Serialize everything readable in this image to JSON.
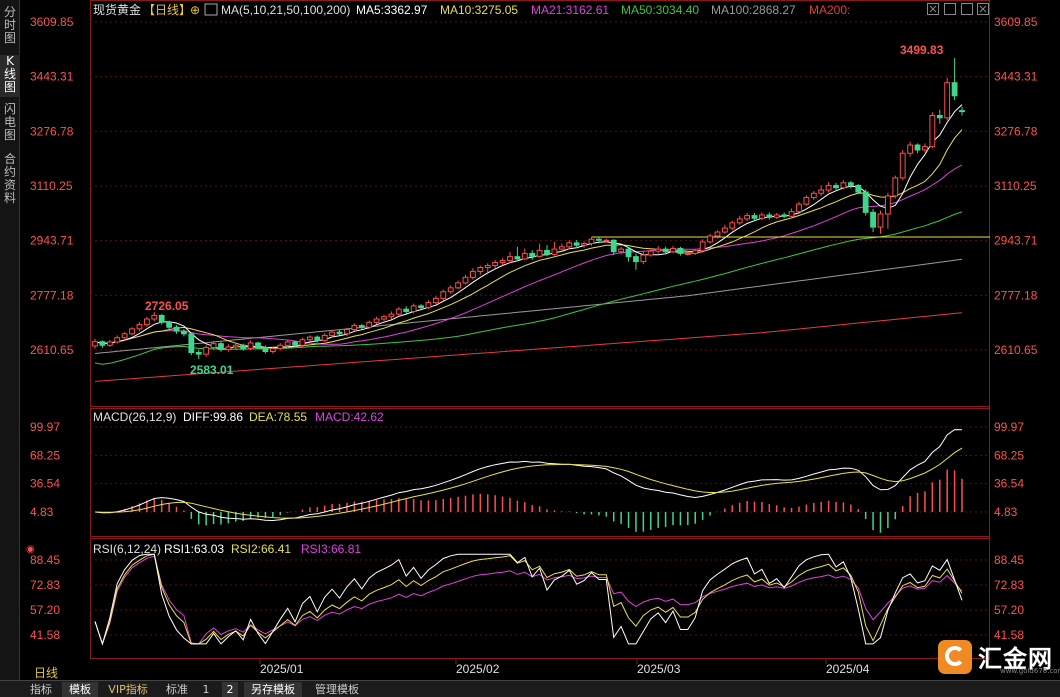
{
  "sidebar": {
    "tabs": [
      {
        "label": "分时图",
        "active": false
      },
      {
        "label": "K线图",
        "active": true
      },
      {
        "label": "闪电图",
        "active": false
      },
      {
        "label": "合约资料",
        "active": false
      }
    ]
  },
  "header": {
    "symbol": "现货黄金",
    "period_tag": "【日线】",
    "ma_params": "MA(5,10,21,50,100,200)",
    "ma5": "MA5:3362.97",
    "ma10": "MA10:3275.05",
    "ma21": "MA21:3162.61",
    "ma50": "MA50:3034.40",
    "ma100": "MA100:2868.27",
    "ma200": "MA200:"
  },
  "colors": {
    "up": "#ff4d4d",
    "down": "#3dd68c",
    "ma5": "#ffffff",
    "ma10": "#e8e04a",
    "ma21": "#e040e0",
    "ma50": "#3ec63e",
    "ma100": "#9a9a9a",
    "ma200": "#e83a3a",
    "axis_text": "#ff5050",
    "grid": "#5a1010"
  },
  "price_axis": [
    "3609.85",
    "3443.31",
    "3276.78",
    "3110.25",
    "2943.71",
    "2777.18",
    "2610.65"
  ],
  "annotations": {
    "high": "3499.83",
    "left_high": "2726.05",
    "low": "2583.01"
  },
  "macd": {
    "title": "MACD(26,12,9)",
    "diff": "DIFF:99.86",
    "dea": "DEA:78.55",
    "macd": "MACD:42.62",
    "axis": [
      "99.97",
      "68.25",
      "36.54",
      "4.83"
    ]
  },
  "rsi": {
    "title": "RSI(6,12,24)",
    "rsi1": "RSI1:63.03",
    "rsi2": "RSI2:66.41",
    "rsi3": "RSI3:66.81",
    "axis": [
      "88.45",
      "72.83",
      "57.20",
      "41.58"
    ]
  },
  "x_axis": [
    "2025/01",
    "2025/02",
    "2025/03",
    "2025/04"
  ],
  "period_label": "日线",
  "bottom_bar": [
    {
      "label": "指标",
      "active": false
    },
    {
      "label": "模板",
      "active": true
    },
    {
      "label": "VIP指标",
      "active": false
    },
    {
      "label": "标准",
      "active": false
    },
    {
      "label": "1",
      "active": false
    },
    {
      "label": "2",
      "active": false
    },
    {
      "label": "另存模板",
      "active": true
    },
    {
      "label": "管理模板",
      "active": false
    }
  ],
  "logo": {
    "text": "汇金网",
    "url": "www.gold678.com"
  },
  "chart_data": {
    "type": "candlestick",
    "candles": [
      {
        "o": 2623,
        "c": 2636,
        "h": 2645,
        "l": 2615
      },
      {
        "o": 2636,
        "c": 2625,
        "h": 2640,
        "l": 2617
      },
      {
        "o": 2625,
        "c": 2635,
        "h": 2642,
        "l": 2620
      },
      {
        "o": 2635,
        "c": 2648,
        "h": 2655,
        "l": 2630
      },
      {
        "o": 2648,
        "c": 2660,
        "h": 2665,
        "l": 2640
      },
      {
        "o": 2660,
        "c": 2675,
        "h": 2680,
        "l": 2655
      },
      {
        "o": 2675,
        "c": 2688,
        "h": 2695,
        "l": 2668
      },
      {
        "o": 2688,
        "c": 2705,
        "h": 2712,
        "l": 2682
      },
      {
        "o": 2705,
        "c": 2716,
        "h": 2726.05,
        "l": 2698
      },
      {
        "o": 2716,
        "c": 2695,
        "h": 2720,
        "l": 2688
      },
      {
        "o": 2695,
        "c": 2680,
        "h": 2700,
        "l": 2672
      },
      {
        "o": 2680,
        "c": 2668,
        "h": 2686,
        "l": 2660
      },
      {
        "o": 2668,
        "c": 2660,
        "h": 2675,
        "l": 2652
      },
      {
        "o": 2660,
        "c": 2603,
        "h": 2665,
        "l": 2595
      },
      {
        "o": 2603,
        "c": 2598,
        "h": 2612,
        "l": 2583.01
      },
      {
        "o": 2598,
        "c": 2618,
        "h": 2625,
        "l": 2590
      },
      {
        "o": 2618,
        "c": 2630,
        "h": 2638,
        "l": 2610
      },
      {
        "o": 2630,
        "c": 2612,
        "h": 2635,
        "l": 2605
      },
      {
        "o": 2612,
        "c": 2620,
        "h": 2628,
        "l": 2606
      },
      {
        "o": 2620,
        "c": 2625,
        "h": 2632,
        "l": 2612
      },
      {
        "o": 2625,
        "c": 2615,
        "h": 2630,
        "l": 2608
      },
      {
        "o": 2615,
        "c": 2632,
        "h": 2640,
        "l": 2610
      },
      {
        "o": 2632,
        "c": 2618,
        "h": 2636,
        "l": 2612
      },
      {
        "o": 2618,
        "c": 2606,
        "h": 2624,
        "l": 2600
      },
      {
        "o": 2606,
        "c": 2615,
        "h": 2620,
        "l": 2600
      },
      {
        "o": 2615,
        "c": 2625,
        "h": 2632,
        "l": 2610
      },
      {
        "o": 2625,
        "c": 2635,
        "h": 2641,
        "l": 2618
      },
      {
        "o": 2635,
        "c": 2625,
        "h": 2640,
        "l": 2620
      },
      {
        "o": 2625,
        "c": 2642,
        "h": 2648,
        "l": 2620
      },
      {
        "o": 2642,
        "c": 2650,
        "h": 2655,
        "l": 2635
      },
      {
        "o": 2650,
        "c": 2640,
        "h": 2655,
        "l": 2633
      },
      {
        "o": 2640,
        "c": 2655,
        "h": 2662,
        "l": 2635
      },
      {
        "o": 2655,
        "c": 2665,
        "h": 2672,
        "l": 2648
      },
      {
        "o": 2665,
        "c": 2660,
        "h": 2673,
        "l": 2655
      },
      {
        "o": 2660,
        "c": 2673,
        "h": 2678,
        "l": 2653
      },
      {
        "o": 2673,
        "c": 2685,
        "h": 2692,
        "l": 2668
      },
      {
        "o": 2685,
        "c": 2680,
        "h": 2690,
        "l": 2674
      },
      {
        "o": 2680,
        "c": 2695,
        "h": 2700,
        "l": 2675
      },
      {
        "o": 2695,
        "c": 2705,
        "h": 2712,
        "l": 2690
      },
      {
        "o": 2705,
        "c": 2712,
        "h": 2718,
        "l": 2698
      },
      {
        "o": 2712,
        "c": 2720,
        "h": 2728,
        "l": 2705
      },
      {
        "o": 2720,
        "c": 2735,
        "h": 2742,
        "l": 2715
      },
      {
        "o": 2735,
        "c": 2728,
        "h": 2744,
        "l": 2722
      },
      {
        "o": 2728,
        "c": 2745,
        "h": 2752,
        "l": 2722
      },
      {
        "o": 2745,
        "c": 2740,
        "h": 2750,
        "l": 2734
      },
      {
        "o": 2740,
        "c": 2755,
        "h": 2762,
        "l": 2735
      },
      {
        "o": 2755,
        "c": 2768,
        "h": 2775,
        "l": 2750
      },
      {
        "o": 2768,
        "c": 2788,
        "h": 2795,
        "l": 2762
      },
      {
        "o": 2788,
        "c": 2800,
        "h": 2808,
        "l": 2782
      },
      {
        "o": 2800,
        "c": 2815,
        "h": 2822,
        "l": 2795
      },
      {
        "o": 2815,
        "c": 2832,
        "h": 2840,
        "l": 2810
      },
      {
        "o": 2832,
        "c": 2850,
        "h": 2860,
        "l": 2825
      },
      {
        "o": 2850,
        "c": 2862,
        "h": 2868,
        "l": 2840
      },
      {
        "o": 2862,
        "c": 2868,
        "h": 2875,
        "l": 2848
      },
      {
        "o": 2868,
        "c": 2877,
        "h": 2885,
        "l": 2860
      },
      {
        "o": 2877,
        "c": 2883,
        "h": 2890,
        "l": 2868
      },
      {
        "o": 2883,
        "c": 2895,
        "h": 2910,
        "l": 2875
      },
      {
        "o": 2895,
        "c": 2888,
        "h": 2925,
        "l": 2880
      },
      {
        "o": 2888,
        "c": 2905,
        "h": 2920,
        "l": 2884
      },
      {
        "o": 2905,
        "c": 2896,
        "h": 2915,
        "l": 2885
      },
      {
        "o": 2896,
        "c": 2914,
        "h": 2935,
        "l": 2892
      },
      {
        "o": 2914,
        "c": 2902,
        "h": 2930,
        "l": 2896
      },
      {
        "o": 2902,
        "c": 2918,
        "h": 2940,
        "l": 2898
      },
      {
        "o": 2918,
        "c": 2925,
        "h": 2935,
        "l": 2910
      },
      {
        "o": 2925,
        "c": 2937,
        "h": 2945,
        "l": 2918
      },
      {
        "o": 2937,
        "c": 2930,
        "h": 2946,
        "l": 2920
      },
      {
        "o": 2930,
        "c": 2935,
        "h": 2942,
        "l": 2922
      },
      {
        "o": 2935,
        "c": 2948,
        "h": 2956,
        "l": 2928
      },
      {
        "o": 2948,
        "c": 2945,
        "h": 2955,
        "l": 2935
      },
      {
        "o": 2945,
        "c": 2945,
        "h": 2950,
        "l": 2938
      },
      {
        "o": 2945,
        "c": 2910,
        "h": 2948,
        "l": 2900
      },
      {
        "o": 2910,
        "c": 2918,
        "h": 2925,
        "l": 2902
      },
      {
        "o": 2918,
        "c": 2895,
        "h": 2922,
        "l": 2880
      },
      {
        "o": 2895,
        "c": 2880,
        "h": 2905,
        "l": 2855
      },
      {
        "o": 2880,
        "c": 2900,
        "h": 2910,
        "l": 2872
      },
      {
        "o": 2900,
        "c": 2912,
        "h": 2920,
        "l": 2895
      },
      {
        "o": 2912,
        "c": 2918,
        "h": 2928,
        "l": 2905
      },
      {
        "o": 2918,
        "c": 2910,
        "h": 2925,
        "l": 2902
      },
      {
        "o": 2910,
        "c": 2920,
        "h": 2928,
        "l": 2905
      },
      {
        "o": 2920,
        "c": 2905,
        "h": 2925,
        "l": 2898
      },
      {
        "o": 2905,
        "c": 2905,
        "h": 2912,
        "l": 2898
      },
      {
        "o": 2905,
        "c": 2913,
        "h": 2918,
        "l": 2900
      },
      {
        "o": 2913,
        "c": 2940,
        "h": 2948,
        "l": 2908
      },
      {
        "o": 2940,
        "c": 2958,
        "h": 2965,
        "l": 2935
      },
      {
        "o": 2958,
        "c": 2970,
        "h": 2975,
        "l": 2950
      },
      {
        "o": 2970,
        "c": 2982,
        "h": 2992,
        "l": 2965
      },
      {
        "o": 2982,
        "c": 2998,
        "h": 3005,
        "l": 2975
      },
      {
        "o": 2998,
        "c": 3010,
        "h": 3020,
        "l": 2992
      },
      {
        "o": 3010,
        "c": 3020,
        "h": 3028,
        "l": 3004
      },
      {
        "o": 3020,
        "c": 3012,
        "h": 3028,
        "l": 3005
      },
      {
        "o": 3012,
        "c": 3022,
        "h": 3030,
        "l": 3006
      },
      {
        "o": 3022,
        "c": 3015,
        "h": 3030,
        "l": 3008
      },
      {
        "o": 3015,
        "c": 3022,
        "h": 3028,
        "l": 3010
      },
      {
        "o": 3022,
        "c": 3018,
        "h": 3030,
        "l": 3012
      },
      {
        "o": 3018,
        "c": 3032,
        "h": 3042,
        "l": 3012
      },
      {
        "o": 3032,
        "c": 3055,
        "h": 3062,
        "l": 3025
      },
      {
        "o": 3055,
        "c": 3075,
        "h": 3082,
        "l": 3050
      },
      {
        "o": 3075,
        "c": 3088,
        "h": 3095,
        "l": 3068
      },
      {
        "o": 3088,
        "c": 3098,
        "h": 3112,
        "l": 3080
      },
      {
        "o": 3098,
        "c": 3112,
        "h": 3122,
        "l": 3090
      },
      {
        "o": 3112,
        "c": 3105,
        "h": 3120,
        "l": 3098
      },
      {
        "o": 3105,
        "c": 3120,
        "h": 3128,
        "l": 3100
      },
      {
        "o": 3120,
        "c": 3112,
        "h": 3126,
        "l": 3102
      },
      {
        "o": 3112,
        "c": 3092,
        "h": 3116,
        "l": 3085
      },
      {
        "o": 3092,
        "c": 3030,
        "h": 3100,
        "l": 3020
      },
      {
        "o": 3030,
        "c": 2985,
        "h": 3040,
        "l": 2970
      },
      {
        "o": 2985,
        "c": 3025,
        "h": 3035,
        "l": 2965
      },
      {
        "o": 3025,
        "c": 3080,
        "h": 3090,
        "l": 2980
      },
      {
        "o": 3080,
        "c": 3135,
        "h": 3142,
        "l": 3072
      },
      {
        "o": 3135,
        "c": 3210,
        "h": 3220,
        "l": 3128
      },
      {
        "o": 3210,
        "c": 3235,
        "h": 3245,
        "l": 3200
      },
      {
        "o": 3235,
        "c": 3220,
        "h": 3240,
        "l": 3210
      },
      {
        "o": 3220,
        "c": 3230,
        "h": 3240,
        "l": 3212
      },
      {
        "o": 3230,
        "c": 3325,
        "h": 3335,
        "l": 3225
      },
      {
        "o": 3325,
        "c": 3318,
        "h": 3342,
        "l": 3300
      },
      {
        "o": 3318,
        "c": 3425,
        "h": 3440,
        "l": 3310
      },
      {
        "o": 3425,
        "c": 3385,
        "h": 3499.83,
        "l": 3372
      },
      {
        "o": 3340,
        "c": 3338,
        "h": 3352,
        "l": 3325
      }
    ],
    "horizontal_level": 2955
  }
}
